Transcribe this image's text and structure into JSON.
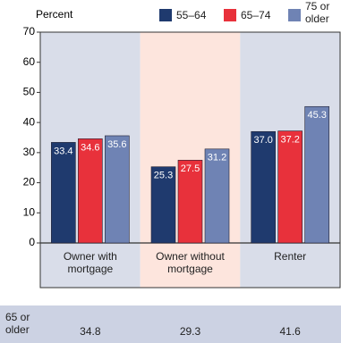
{
  "chart_data": {
    "type": "bar",
    "y_label": "Percent",
    "categories": [
      "Owner with mortgage",
      "Owner without mortgage",
      "Renter"
    ],
    "series": [
      {
        "name": "55–64",
        "color": "#1f3a6e",
        "values": [
          33.4,
          25.3,
          37.0
        ],
        "value_labels": [
          "33.4",
          "25.3",
          "37.0"
        ]
      },
      {
        "name": "65–74",
        "color": "#e8313b",
        "values": [
          34.6,
          27.5,
          37.2
        ],
        "value_labels": [
          "34.6",
          "27.5",
          "37.2"
        ]
      },
      {
        "name": "75 or older",
        "color": "#6f83b4",
        "values": [
          35.6,
          31.2,
          45.3
        ],
        "value_labels": [
          "35.6",
          "31.2",
          "45.3"
        ]
      }
    ],
    "ylim": [
      0,
      70
    ],
    "yticks": [
      0,
      10,
      20,
      30,
      40,
      50,
      60,
      70
    ],
    "grid": false,
    "band_colors": [
      "#d9dde9",
      "#fde5dd",
      "#d9dde9"
    ]
  },
  "table": {
    "row_label": "65 or older",
    "values": [
      "34.8",
      "29.3",
      "41.6"
    ],
    "color": "#ccd2e3"
  }
}
